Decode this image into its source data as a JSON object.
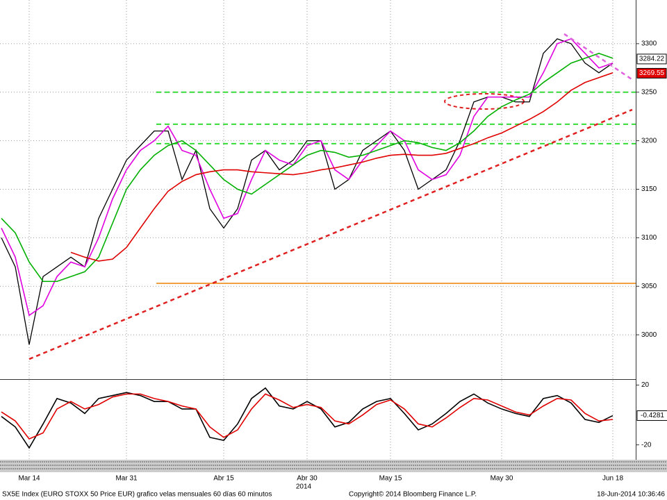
{
  "chart_data": [
    {
      "type": "line",
      "categories": [
        null,
        null,
        "Mar 14",
        null,
        null,
        null,
        null,
        null,
        null,
        "Mar 31",
        null,
        null,
        null,
        null,
        null,
        null,
        "Abr 15",
        null,
        null,
        null,
        null,
        null,
        "Abr 30",
        null,
        null,
        null,
        null,
        null,
        "May 15",
        null,
        null,
        null,
        null,
        null,
        null,
        null,
        "May 30",
        null,
        null,
        null,
        null,
        null,
        null,
        null,
        "Jun 18"
      ],
      "x_sublabel": "2014",
      "ylim": [
        2955,
        3345
      ],
      "yticks": [
        3000,
        3050,
        3100,
        3150,
        3200,
        3250,
        3300
      ],
      "grid": true,
      "series": [
        {
          "color": "#000000",
          "values": [
            3100,
            3070,
            2990,
            3060,
            3070,
            3080,
            3070,
            3120,
            3150,
            3180,
            3195,
            3210,
            3210,
            3160,
            3190,
            3130,
            3110,
            3130,
            3180,
            3190,
            3170,
            3180,
            3200,
            3200,
            3150,
            3160,
            3190,
            3200,
            3210,
            3190,
            3150,
            3160,
            3170,
            3200,
            3240,
            3245,
            3245,
            3240,
            3240,
            3290,
            3305,
            3300,
            3280,
            3270,
            3280
          ]
        },
        {
          "color": "#e000e0",
          "values": [
            3110,
            3080,
            3020,
            3030,
            3060,
            3075,
            3070,
            3100,
            3140,
            3170,
            3190,
            3200,
            3215,
            3190,
            3185,
            3150,
            3120,
            3125,
            3160,
            3190,
            3180,
            3175,
            3195,
            3200,
            3170,
            3160,
            3180,
            3195,
            3210,
            3200,
            3170,
            3160,
            3165,
            3185,
            3225,
            3245,
            3245,
            3245,
            3245,
            3270,
            3300,
            3305,
            3290,
            3275,
            3280
          ]
        },
        {
          "color": "#00b000",
          "values": [
            3120,
            3105,
            3075,
            3055,
            3055,
            3060,
            3065,
            3080,
            3115,
            3150,
            3170,
            3185,
            3195,
            3200,
            3190,
            3175,
            3160,
            3150,
            3145,
            3155,
            3165,
            3175,
            3185,
            3190,
            3188,
            3183,
            3185,
            3190,
            3195,
            3200,
            3198,
            3193,
            3190,
            3198,
            3210,
            3225,
            3235,
            3242,
            3248,
            3260,
            3270,
            3280,
            3285,
            3290,
            3285
          ]
        },
        {
          "color": "#e00000",
          "values": [
            null,
            null,
            null,
            null,
            null,
            3085,
            3080,
            3076,
            3078,
            3090,
            3110,
            3130,
            3148,
            3158,
            3165,
            3168,
            3170,
            3170,
            3168,
            3167,
            3166,
            3165,
            3167,
            3170,
            3172,
            3175,
            3178,
            3182,
            3185,
            3186,
            3185,
            3185,
            3187,
            3192,
            3197,
            3203,
            3208,
            3215,
            3222,
            3230,
            3240,
            3252,
            3260,
            3265,
            3270
          ]
        }
      ],
      "hlines": [
        {
          "value": 3250,
          "color": "#33dd33"
        },
        {
          "value": 3217,
          "color": "#33dd33"
        },
        {
          "value": 3197,
          "color": "#33dd33"
        },
        {
          "value": 3053,
          "color": "#f0a040"
        }
      ],
      "trendlines": [
        {
          "values": [
            2975,
            3232
          ],
          "color": "#e02020"
        },
        {
          "values": [
            3310,
            3263
          ],
          "color": "#e060e0"
        }
      ],
      "price_labels": [
        {
          "value": 3284.22,
          "color": "#ffffff",
          "text_color": "#000000"
        },
        {
          "value": 3269.55,
          "color": "#e00000",
          "text_color": "#ffffff"
        }
      ],
      "source": "SX5E Index (EURO STOXX 50 Price EUR) grafico velas mensuales 60 días 60 minutos",
      "copyright": "Copyright© 2014 Bloomberg Finance L.P.",
      "timestamp": "18-Jun-2014 10:36:46"
    },
    {
      "type": "line",
      "ylim": [
        -29,
        23
      ],
      "yticks": [
        20,
        -20
      ],
      "series": [
        {
          "color": "#000000",
          "values": [
            -1,
            -8,
            -22,
            -6,
            11,
            8,
            1,
            11,
            13,
            15,
            13,
            9,
            9,
            4,
            4,
            -15,
            -17,
            -6,
            11,
            18,
            6,
            4,
            9,
            4,
            -8,
            -5,
            4,
            9,
            11,
            1,
            -10,
            -6,
            1,
            9,
            14,
            8,
            4,
            1,
            -1,
            11,
            13,
            8,
            -3,
            -5,
            -0.4281
          ]
        },
        {
          "color": "#e00000",
          "values": [
            2,
            -4,
            -16,
            -12,
            4,
            9,
            4,
            7,
            12,
            14,
            14,
            11,
            9,
            6,
            4,
            -8,
            -15,
            -10,
            4,
            14,
            10,
            5,
            7,
            5,
            -4,
            -6,
            0,
            7,
            10,
            4,
            -6,
            -8,
            -2,
            5,
            11,
            10,
            6,
            2,
            0,
            6,
            11,
            10,
            1,
            -4,
            -3
          ]
        }
      ]
    }
  ]
}
